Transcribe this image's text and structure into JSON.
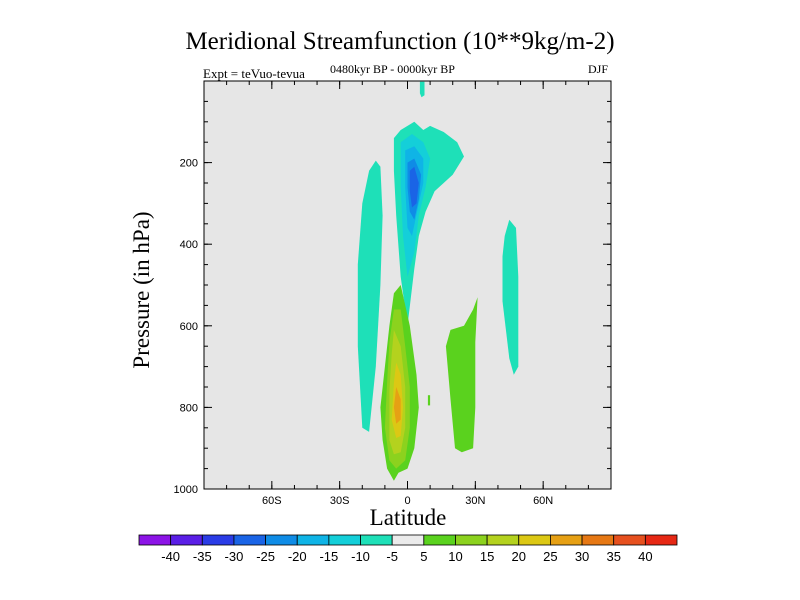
{
  "chart_data": {
    "type": "heatmap",
    "title": "Meridional Streamfunction (10**9kg/m-2)",
    "subtitle": "0480kyr BP - 0000kyr BP",
    "left_label": "Expt = teVuo-tevua",
    "right_label": "DJF",
    "xlabel": "Latitude",
    "ylabel": "Pressure (in hPa)",
    "xlim": [
      -90,
      90
    ],
    "ylim": [
      1000,
      0
    ],
    "x_ticks": [
      {
        "value": -60,
        "label": "60S"
      },
      {
        "value": -30,
        "label": "30S"
      },
      {
        "value": 0,
        "label": "0"
      },
      {
        "value": 30,
        "label": "30N"
      },
      {
        "value": 60,
        "label": "60N"
      }
    ],
    "y_ticks": [
      {
        "value": 200,
        "label": "200"
      },
      {
        "value": 400,
        "label": "400"
      },
      {
        "value": 600,
        "label": "600"
      },
      {
        "value": 800,
        "label": "800"
      },
      {
        "value": 1000,
        "label": "1000"
      }
    ],
    "background_color": "#e6e6e6",
    "colorbar": {
      "labels": [
        "-40",
        "-35",
        "-30",
        "-25",
        "-20",
        "-15",
        "-10",
        "-5",
        "5",
        "10",
        "15",
        "20",
        "25",
        "30",
        "35",
        "40"
      ],
      "colors": [
        "#8c14e6",
        "#5a1ee6",
        "#2a3ce6",
        "#1a64e6",
        "#0f8ce6",
        "#0fb4e6",
        "#14cfd9",
        "#1ee0b8",
        "#ebebeb",
        "#5ad21e",
        "#8cd21e",
        "#b4d21e",
        "#dcc814",
        "#e6a014",
        "#e67814",
        "#e6501e",
        "#e62814"
      ]
    },
    "regions": [
      {
        "name": "negative-upper-narrow",
        "level": "-5",
        "color": "#1ee0b8",
        "points": [
          [
            5.5,
            2
          ],
          [
            7.5,
            2
          ],
          [
            7.5,
            35
          ],
          [
            6.2,
            40
          ],
          [
            5.5,
            30
          ]
        ]
      },
      {
        "name": "negative-core-outer",
        "level": "-5",
        "color": "#1ee0b8",
        "points": [
          [
            -6,
            140
          ],
          [
            -3,
            120
          ],
          [
            3,
            100
          ],
          [
            7,
            120
          ],
          [
            10,
            110
          ],
          [
            16,
            125
          ],
          [
            22,
            150
          ],
          [
            25,
            185
          ],
          [
            20,
            230
          ],
          [
            12,
            270
          ],
          [
            8,
            320
          ],
          [
            5,
            380
          ],
          [
            3,
            460
          ],
          [
            0,
            600
          ],
          [
            -3,
            480
          ],
          [
            -5,
            330
          ],
          [
            -6,
            220
          ]
        ]
      },
      {
        "name": "negative-core-level-10",
        "level": "-10",
        "color": "#14cfd9",
        "points": [
          [
            -3,
            150
          ],
          [
            2,
            130
          ],
          [
            7,
            150
          ],
          [
            10,
            190
          ],
          [
            8,
            260
          ],
          [
            5,
            330
          ],
          [
            3,
            420
          ],
          [
            0,
            480
          ],
          [
            -2,
            380
          ],
          [
            -3,
            260
          ]
        ]
      },
      {
        "name": "negative-core-level-15",
        "level": "-15",
        "color": "#0fb4e6",
        "points": [
          [
            -1,
            170
          ],
          [
            3,
            160
          ],
          [
            7,
            190
          ],
          [
            7,
            250
          ],
          [
            5,
            300
          ],
          [
            2,
            380
          ],
          [
            0,
            360
          ],
          [
            -1,
            260
          ]
        ]
      },
      {
        "name": "negative-core-level-20",
        "level": "-20",
        "color": "#0f8ce6",
        "points": [
          [
            0,
            200
          ],
          [
            3,
            190
          ],
          [
            6,
            230
          ],
          [
            5,
            290
          ],
          [
            3,
            340
          ],
          [
            1,
            320
          ],
          [
            0,
            260
          ]
        ]
      },
      {
        "name": "negative-core-level-25",
        "level": "-25",
        "color": "#1a64e6",
        "points": [
          [
            1,
            220
          ],
          [
            3,
            210
          ],
          [
            5,
            250
          ],
          [
            4,
            300
          ],
          [
            2,
            310
          ],
          [
            1,
            270
          ]
        ]
      },
      {
        "name": "negative-southern-band",
        "level": "-5",
        "color": "#1ee0b8",
        "points": [
          [
            -20,
            300
          ],
          [
            -17,
            220
          ],
          [
            -14,
            195
          ],
          [
            -12,
            210
          ],
          [
            -11,
            330
          ],
          [
            -12,
            500
          ],
          [
            -14,
            700
          ],
          [
            -17,
            860
          ],
          [
            -20,
            850
          ],
          [
            -22,
            650
          ],
          [
            -22,
            450
          ]
        ]
      },
      {
        "name": "negative-northern-band",
        "level": "-5",
        "color": "#1ee0b8",
        "points": [
          [
            43,
            380
          ],
          [
            45,
            340
          ],
          [
            48,
            360
          ],
          [
            49,
            480
          ],
          [
            49,
            700
          ],
          [
            47,
            720
          ],
          [
            45,
            680
          ],
          [
            42,
            540
          ],
          [
            42,
            430
          ]
        ]
      },
      {
        "name": "positive-outer",
        "level": "5",
        "color": "#5ad21e",
        "points": [
          [
            -6,
            520
          ],
          [
            -3,
            500
          ],
          [
            1,
            600
          ],
          [
            4,
            720
          ],
          [
            5,
            800
          ],
          [
            3,
            900
          ],
          [
            0,
            950
          ],
          [
            -4,
            960
          ],
          [
            -6,
            980
          ],
          [
            -9,
            950
          ],
          [
            -11,
            880
          ],
          [
            -12,
            800
          ],
          [
            -10,
            700
          ],
          [
            -8,
            600
          ]
        ]
      },
      {
        "name": "positive-level-10",
        "level": "10",
        "color": "#8cd21e",
        "points": [
          [
            -6,
            560
          ],
          [
            -3,
            560
          ],
          [
            -1,
            650
          ],
          [
            1,
            750
          ],
          [
            1,
            850
          ],
          [
            -1,
            930
          ],
          [
            -5,
            950
          ],
          [
            -8,
            930
          ],
          [
            -10,
            850
          ],
          [
            -9,
            740
          ],
          [
            -8,
            640
          ]
        ]
      },
      {
        "name": "positive-level-15",
        "level": "15",
        "color": "#b4d21e",
        "points": [
          [
            -6,
            610
          ],
          [
            -3,
            650
          ],
          [
            -1,
            750
          ],
          [
            -1,
            850
          ],
          [
            -3,
            910
          ],
          [
            -6,
            915
          ],
          [
            -8,
            880
          ],
          [
            -8,
            760
          ],
          [
            -7,
            670
          ]
        ]
      },
      {
        "name": "positive-level-20",
        "level": "20",
        "color": "#dcc814",
        "points": [
          [
            -5,
            690
          ],
          [
            -3,
            720
          ],
          [
            -2,
            800
          ],
          [
            -3,
            870
          ],
          [
            -5,
            875
          ],
          [
            -7,
            830
          ],
          [
            -6,
            740
          ]
        ]
      },
      {
        "name": "positive-level-25",
        "level": "25",
        "color": "#e6a014",
        "points": [
          [
            -5,
            750
          ],
          [
            -3,
            780
          ],
          [
            -3,
            830
          ],
          [
            -5,
            840
          ],
          [
            -6,
            800
          ]
        ]
      },
      {
        "name": "positive-small-patch",
        "level": "5",
        "color": "#5ad21e",
        "points": [
          [
            9,
            770
          ],
          [
            10,
            770
          ],
          [
            10,
            795
          ],
          [
            9,
            795
          ]
        ]
      },
      {
        "name": "positive-northern-cell",
        "level": "5",
        "color": "#5ad21e",
        "points": [
          [
            25,
            600
          ],
          [
            29,
            560
          ],
          [
            31,
            530
          ],
          [
            30,
            640
          ],
          [
            30,
            800
          ],
          [
            29,
            900
          ],
          [
            24,
            910
          ],
          [
            21,
            900
          ],
          [
            19,
            780
          ],
          [
            17,
            650
          ],
          [
            19,
            610
          ]
        ]
      }
    ]
  }
}
